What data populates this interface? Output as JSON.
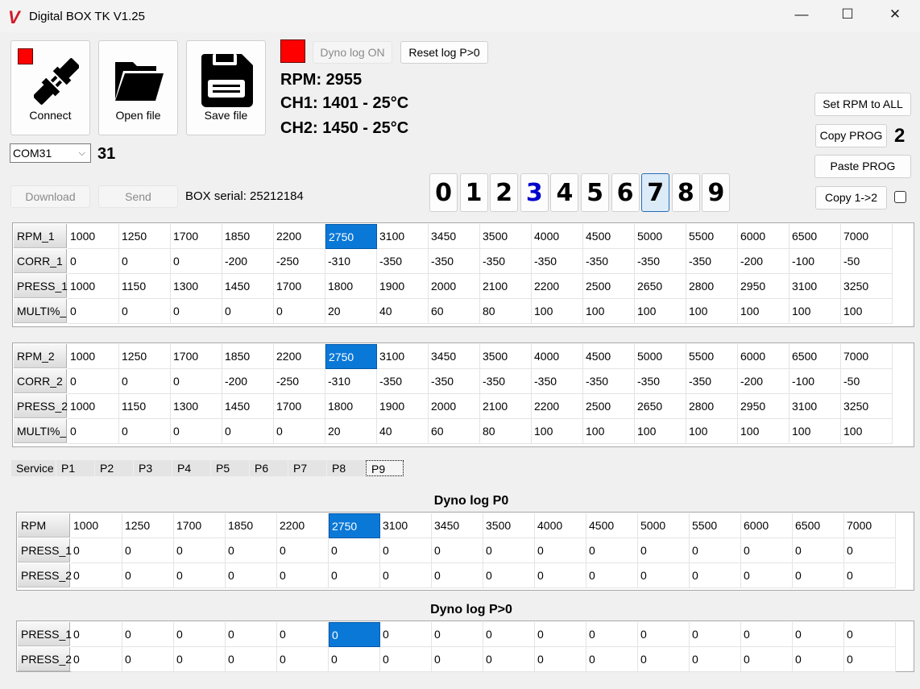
{
  "window": {
    "title": "Digital BOX TK V1.25",
    "minimize": "—",
    "maximize": "☐",
    "close": "✕"
  },
  "toolbar": {
    "connect_label": "Connect",
    "open_label": "Open file",
    "save_label": "Save file",
    "connect_status_color": "#ff0000"
  },
  "port": {
    "selected": "COM31",
    "number": "31"
  },
  "dyno": {
    "status_color": "#ff0000",
    "dyno_log_on": "Dyno log ON",
    "reset_log": "Reset log P>0"
  },
  "readings": {
    "rpm": "RPM: 2955",
    "ch1": "CH1: 1401 - 25°C",
    "ch2": "CH2: 1450 - 25°C"
  },
  "actions": {
    "download": "Download",
    "send": "Send",
    "box_serial": "BOX serial: 25212184"
  },
  "right": {
    "set_rpm_all": "Set RPM to ALL",
    "copy_prog": "Copy PROG",
    "copy_prog_number": "2",
    "paste_prog": "Paste PROG",
    "copy_1_2": "Copy 1->2",
    "copy_1_2_checked": false
  },
  "programs": {
    "digits": [
      "0",
      "1",
      "2",
      "3",
      "4",
      "5",
      "6",
      "7",
      "8",
      "9"
    ],
    "selected": "7",
    "highlighted": "3",
    "highlight_color": "#0000cc"
  },
  "table1": {
    "selected_col": 5,
    "rows": [
      {
        "label": "RPM_1",
        "values": [
          "1000",
          "1250",
          "1700",
          "1850",
          "2200",
          "2750",
          "3100",
          "3450",
          "3500",
          "4000",
          "4500",
          "5000",
          "5500",
          "6000",
          "6500",
          "7000"
        ]
      },
      {
        "label": "CORR_1",
        "values": [
          "0",
          "0",
          "0",
          "-200",
          "-250",
          "-310",
          "-350",
          "-350",
          "-350",
          "-350",
          "-350",
          "-350",
          "-350",
          "-200",
          "-100",
          "-50"
        ]
      },
      {
        "label": "PRESS_1",
        "values": [
          "1000",
          "1150",
          "1300",
          "1450",
          "1700",
          "1800",
          "1900",
          "2000",
          "2100",
          "2200",
          "2500",
          "2650",
          "2800",
          "2950",
          "3100",
          "3250"
        ]
      },
      {
        "label": "MULTI%_",
        "values": [
          "0",
          "0",
          "0",
          "0",
          "0",
          "20",
          "40",
          "60",
          "80",
          "100",
          "100",
          "100",
          "100",
          "100",
          "100",
          "100"
        ]
      }
    ]
  },
  "table2": {
    "selected_col": 5,
    "rows": [
      {
        "label": "RPM_2",
        "values": [
          "1000",
          "1250",
          "1700",
          "1850",
          "2200",
          "2750",
          "3100",
          "3450",
          "3500",
          "4000",
          "4500",
          "5000",
          "5500",
          "6000",
          "6500",
          "7000"
        ]
      },
      {
        "label": "CORR_2",
        "values": [
          "0",
          "0",
          "0",
          "-200",
          "-250",
          "-310",
          "-350",
          "-350",
          "-350",
          "-350",
          "-350",
          "-350",
          "-350",
          "-200",
          "-100",
          "-50"
        ]
      },
      {
        "label": "PRESS_2",
        "values": [
          "1000",
          "1150",
          "1300",
          "1450",
          "1700",
          "1800",
          "1900",
          "2000",
          "2100",
          "2200",
          "2500",
          "2650",
          "2800",
          "2950",
          "3100",
          "3250"
        ]
      },
      {
        "label": "MULTI%_",
        "values": [
          "0",
          "0",
          "0",
          "0",
          "0",
          "20",
          "40",
          "60",
          "80",
          "100",
          "100",
          "100",
          "100",
          "100",
          "100",
          "100"
        ]
      }
    ]
  },
  "tabs": {
    "items": [
      "Service",
      "P1",
      "P2",
      "P3",
      "P4",
      "P5",
      "P6",
      "P7",
      "P8",
      "P9"
    ],
    "active": "P9"
  },
  "dyno_p0": {
    "title": "Dyno log  P0",
    "selected_col": 5,
    "rows": [
      {
        "label": "RPM",
        "values": [
          "1000",
          "1250",
          "1700",
          "1850",
          "2200",
          "2750",
          "3100",
          "3450",
          "3500",
          "4000",
          "4500",
          "5000",
          "5500",
          "6000",
          "6500",
          "7000"
        ]
      },
      {
        "label": "PRESS_1",
        "values": [
          "0",
          "0",
          "0",
          "0",
          "0",
          "0",
          "0",
          "0",
          "0",
          "0",
          "0",
          "0",
          "0",
          "0",
          "0",
          "0"
        ]
      },
      {
        "label": "PRESS_2",
        "values": [
          "0",
          "0",
          "0",
          "0",
          "0",
          "0",
          "0",
          "0",
          "0",
          "0",
          "0",
          "0",
          "0",
          "0",
          "0",
          "0"
        ]
      }
    ]
  },
  "dyno_pgt0": {
    "title": "Dyno log  P>0",
    "selected_col": 5,
    "selected_row": 0,
    "rows": [
      {
        "label": "PRESS_1",
        "values": [
          "0",
          "0",
          "0",
          "0",
          "0",
          "0",
          "0",
          "0",
          "0",
          "0",
          "0",
          "0",
          "0",
          "0",
          "0",
          "0"
        ]
      },
      {
        "label": "PRESS_2",
        "values": [
          "0",
          "0",
          "0",
          "0",
          "0",
          "0",
          "0",
          "0",
          "0",
          "0",
          "0",
          "0",
          "0",
          "0",
          "0",
          "0"
        ]
      }
    ]
  }
}
